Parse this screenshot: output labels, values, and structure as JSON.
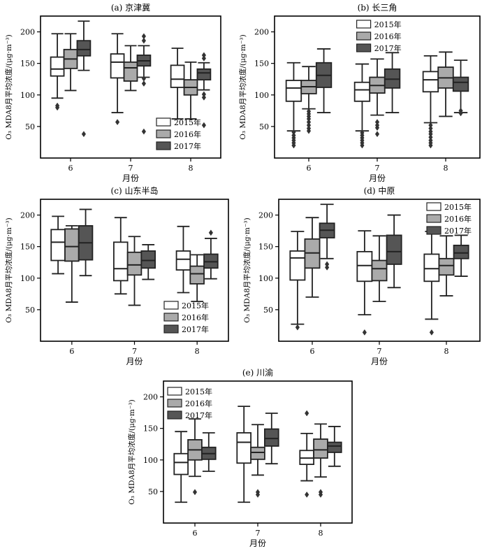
{
  "chart_data": [
    {
      "type": "box",
      "title": "(a) 京津冀",
      "xlabel": "月份",
      "ylabel": "O₃ MDA8月平均浓度/(μg·m⁻³)",
      "ylim": [
        0,
        225
      ],
      "yticks": [
        50,
        100,
        150,
        200
      ],
      "categories": [
        "6",
        "7",
        "8"
      ],
      "legend_position": "bottom-right",
      "series": [
        {
          "name": "2015年",
          "color": "#ffffff",
          "boxes": [
            {
              "whislo": 95,
              "q1": 130,
              "med": 141,
              "q3": 160,
              "whishi": 197,
              "fliers": [
                80,
                83
              ]
            },
            {
              "whislo": 72,
              "q1": 127,
              "med": 152,
              "q3": 165,
              "whishi": 197,
              "fliers": [
                57
              ]
            },
            {
              "whislo": 62,
              "q1": 112,
              "med": 125,
              "q3": 147,
              "whishi": 174,
              "fliers": []
            }
          ]
        },
        {
          "name": "2016年",
          "color": "#aaaaaa",
          "boxes": [
            {
              "whislo": 107,
              "q1": 142,
              "med": 157,
              "q3": 172,
              "whishi": 197,
              "fliers": []
            },
            {
              "whislo": 107,
              "q1": 122,
              "med": 143,
              "q3": 152,
              "whishi": 178,
              "fliers": []
            },
            {
              "whislo": 62,
              "q1": 100,
              "med": 112,
              "q3": 124,
              "whishi": 152,
              "fliers": []
            }
          ]
        },
        {
          "name": "2017年",
          "color": "#555555",
          "boxes": [
            {
              "whislo": 139,
              "q1": 162,
              "med": 172,
              "q3": 186,
              "whishi": 217,
              "fliers": [
                38
              ]
            },
            {
              "whislo": 128,
              "q1": 146,
              "med": 154,
              "q3": 163,
              "whishi": 178,
              "fliers": [
                42,
                118,
                126,
                193,
                186
              ]
            },
            {
              "whislo": 108,
              "q1": 124,
              "med": 135,
              "q3": 141,
              "whishi": 151,
              "fliers": [
                52,
                96,
                101,
                163,
                158
              ]
            }
          ]
        }
      ]
    },
    {
      "type": "box",
      "title": "(b) 长三角",
      "xlabel": "月份",
      "ylabel": "O₃ MDA8月平均浓度/(μg·m⁻³)",
      "ylim": [
        0,
        225
      ],
      "yticks": [
        50,
        100,
        150,
        200
      ],
      "categories": [
        "6",
        "7",
        "8"
      ],
      "legend_position": "top-center",
      "series": [
        {
          "name": "2015年",
          "color": "#ffffff",
          "boxes": [
            {
              "whislo": 43,
              "q1": 90,
              "med": 111,
              "q3": 123,
              "whishi": 151,
              "fliers": [
                20,
                24,
                28,
                32,
                36,
                41
              ]
            },
            {
              "whislo": 43,
              "q1": 90,
              "med": 108,
              "q3": 120,
              "whishi": 149,
              "fliers": [
                20,
                24,
                28,
                32,
                36,
                40
              ]
            },
            {
              "whislo": 56,
              "q1": 105,
              "med": 124,
              "q3": 137,
              "whishi": 162,
              "fliers": [
                20,
                24,
                28,
                33,
                38,
                42,
                47,
                52
              ]
            }
          ]
        },
        {
          "name": "2016年",
          "color": "#aaaaaa",
          "boxes": [
            {
              "whislo": 78,
              "q1": 102,
              "med": 113,
              "q3": 123,
              "whishi": 145,
              "fliers": [
                43,
                47,
                52,
                57,
                62,
                66,
                70,
                74
              ]
            },
            {
              "whislo": 68,
              "q1": 103,
              "med": 115,
              "q3": 128,
              "whishi": 157,
              "fliers": [
                38,
                48,
                52,
                57
              ]
            },
            {
              "whislo": 66,
              "q1": 111,
              "med": 127,
              "q3": 144,
              "whishi": 168,
              "fliers": []
            }
          ]
        },
        {
          "name": "2017年",
          "color": "#555555",
          "boxes": [
            {
              "whislo": 72,
              "q1": 112,
              "med": 131,
              "q3": 151,
              "whishi": 173,
              "fliers": []
            },
            {
              "whislo": 72,
              "q1": 111,
              "med": 125,
              "q3": 141,
              "whishi": 167,
              "fliers": []
            },
            {
              "whislo": 72,
              "q1": 106,
              "med": 120,
              "q3": 128,
              "whishi": 155,
              "fliers": [
                71,
                75
              ]
            }
          ]
        }
      ]
    },
    {
      "type": "box",
      "title": "(c) 山东半岛",
      "xlabel": "月份",
      "ylabel": "O₃ MDA8月平均浓度/(μg·m⁻³)",
      "ylim": [
        0,
        225
      ],
      "yticks": [
        50,
        100,
        150,
        200
      ],
      "categories": [
        "6",
        "7",
        "8"
      ],
      "legend_position": "bottom-right",
      "series": [
        {
          "name": "2015年",
          "color": "#ffffff",
          "boxes": [
            {
              "whislo": 107,
              "q1": 128,
              "med": 157,
              "q3": 177,
              "whishi": 198,
              "fliers": []
            },
            {
              "whislo": 75,
              "q1": 96,
              "med": 115,
              "q3": 157,
              "whishi": 196,
              "fliers": []
            },
            {
              "whislo": 77,
              "q1": 113,
              "med": 130,
              "q3": 143,
              "whishi": 182,
              "fliers": []
            }
          ]
        },
        {
          "name": "2016年",
          "color": "#aaaaaa",
          "boxes": [
            {
              "whislo": 62,
              "q1": 127,
              "med": 150,
              "q3": 178,
              "whishi": 183,
              "fliers": []
            },
            {
              "whislo": 57,
              "q1": 105,
              "med": 121,
              "q3": 141,
              "whishi": 166,
              "fliers": []
            },
            {
              "whislo": 63,
              "q1": 91,
              "med": 107,
              "q3": 119,
              "whishi": 137,
              "fliers": []
            }
          ]
        },
        {
          "name": "2017年",
          "color": "#555555",
          "boxes": [
            {
              "whislo": 104,
              "q1": 129,
              "med": 156,
              "q3": 183,
              "whishi": 209,
              "fliers": []
            },
            {
              "whislo": 98,
              "q1": 116,
              "med": 128,
              "q3": 143,
              "whishi": 153,
              "fliers": []
            },
            {
              "whislo": 99,
              "q1": 116,
              "med": 126,
              "q3": 138,
              "whishi": 163,
              "fliers": [
                172
              ]
            }
          ]
        }
      ]
    },
    {
      "type": "box",
      "title": "(d) 中原",
      "xlabel": "月份",
      "ylabel": "O₃ MDA8月平均浓度/(μg·m⁻³)",
      "ylim": [
        0,
        225
      ],
      "yticks": [
        50,
        100,
        150,
        200
      ],
      "categories": [
        "6",
        "7",
        "8"
      ],
      "legend_position": "top-right",
      "series": [
        {
          "name": "2015年",
          "color": "#ffffff",
          "boxes": [
            {
              "whislo": 27,
              "q1": 97,
              "med": 132,
              "q3": 143,
              "whishi": 174,
              "fliers": [
                22
              ]
            },
            {
              "whislo": 42,
              "q1": 95,
              "med": 120,
              "q3": 142,
              "whishi": 175,
              "fliers": [
                14
              ]
            },
            {
              "whislo": 35,
              "q1": 95,
              "med": 115,
              "q3": 138,
              "whishi": 174,
              "fliers": [
                14
              ]
            }
          ]
        },
        {
          "name": "2016年",
          "color": "#aaaaaa",
          "boxes": [
            {
              "whislo": 70,
              "q1": 116,
              "med": 140,
              "q3": 162,
              "whishi": 196,
              "fliers": []
            },
            {
              "whislo": 63,
              "q1": 96,
              "med": 115,
              "q3": 128,
              "whishi": 167,
              "fliers": []
            },
            {
              "whislo": 72,
              "q1": 105,
              "med": 120,
              "q3": 131,
              "whishi": 167,
              "fliers": []
            }
          ]
        },
        {
          "name": "2017年",
          "color": "#555555",
          "boxes": [
            {
              "whislo": 131,
              "q1": 164,
              "med": 176,
              "q3": 187,
              "whishi": 217,
              "fliers": [
                117,
                122
              ]
            },
            {
              "whislo": 85,
              "q1": 122,
              "med": 142,
              "q3": 168,
              "whishi": 200,
              "fliers": []
            },
            {
              "whislo": 103,
              "q1": 131,
              "med": 140,
              "q3": 152,
              "whishi": 168,
              "fliers": []
            }
          ]
        }
      ]
    },
    {
      "type": "box",
      "title": "(e) 川渝",
      "xlabel": "月份",
      "ylabel": "O₃ MDA8月平均浓度/(μg·m⁻³)",
      "ylim": [
        0,
        225
      ],
      "yticks": [
        50,
        100,
        150,
        200
      ],
      "categories": [
        "6",
        "7",
        "8"
      ],
      "legend_position": "top-left",
      "series": [
        {
          "name": "2015年",
          "color": "#ffffff",
          "boxes": [
            {
              "whislo": 33,
              "q1": 77,
              "med": 96,
              "q3": 110,
              "whishi": 145,
              "fliers": []
            },
            {
              "whislo": 33,
              "q1": 95,
              "med": 128,
              "q3": 143,
              "whishi": 185,
              "fliers": []
            },
            {
              "whislo": 67,
              "q1": 93,
              "med": 103,
              "q3": 115,
              "whishi": 142,
              "fliers": [
                45,
                174
              ]
            }
          ]
        },
        {
          "name": "2016年",
          "color": "#aaaaaa",
          "boxes": [
            {
              "whislo": 74,
              "q1": 100,
              "med": 116,
              "q3": 132,
              "whishi": 165,
              "fliers": [
                49
              ]
            },
            {
              "whislo": 76,
              "q1": 101,
              "med": 112,
              "q3": 120,
              "whishi": 156,
              "fliers": [
                45,
                49
              ]
            },
            {
              "whislo": 73,
              "q1": 103,
              "med": 116,
              "q3": 133,
              "whishi": 157,
              "fliers": [
                45,
                49
              ]
            }
          ]
        },
        {
          "name": "2017年",
          "color": "#555555",
          "boxes": [
            {
              "whislo": 82,
              "q1": 101,
              "med": 110,
              "q3": 120,
              "whishi": 143,
              "fliers": []
            },
            {
              "whislo": 94,
              "q1": 122,
              "med": 134,
              "q3": 149,
              "whishi": 174,
              "fliers": []
            },
            {
              "whislo": 90,
              "q1": 112,
              "med": 122,
              "q3": 128,
              "whishi": 153,
              "fliers": []
            }
          ]
        }
      ]
    }
  ]
}
